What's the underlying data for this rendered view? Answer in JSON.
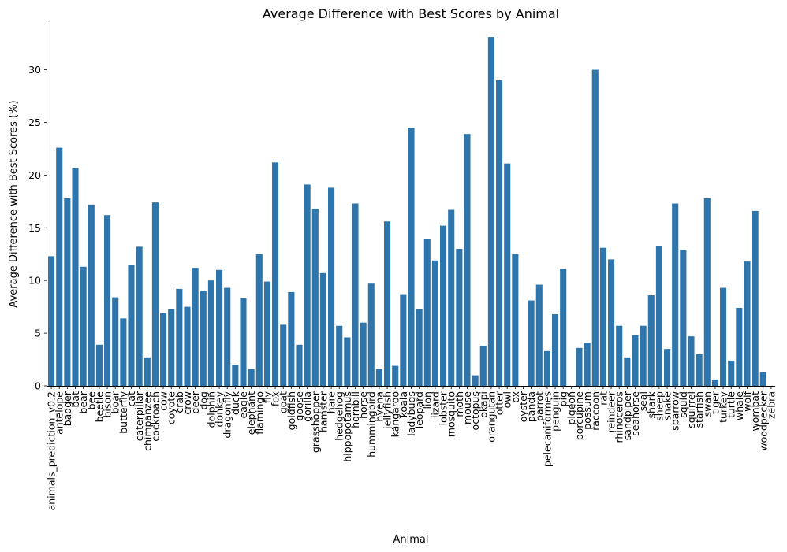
{
  "chart_data": {
    "type": "bar",
    "title": "Average Difference with Best Scores by Animal",
    "xlabel": "Animal",
    "ylabel": "Average Difference with Best Scores (%)",
    "ylim": [
      0,
      34.6
    ],
    "yticks": [
      0,
      5,
      10,
      15,
      20,
      25,
      30
    ],
    "grid": false,
    "bar_color": "#2e75ac",
    "categories": [
      "animals_prediction_v0.2",
      "antelope",
      "badger",
      "bat",
      "bear",
      "bee",
      "beetle",
      "bison",
      "boar",
      "butterfly",
      "cat",
      "caterpillar",
      "chimpanzee",
      "cockroach",
      "cow",
      "coyote",
      "crab",
      "crow",
      "deer",
      "dog",
      "dolphin",
      "donkey",
      "dragonfly",
      "duck",
      "eagle",
      "elephant",
      "flamingo",
      "fly",
      "fox",
      "goat",
      "goldfish",
      "goose",
      "gorilla",
      "grasshopper",
      "hamster",
      "hare",
      "hedgehog",
      "hippopotamus",
      "hornbill",
      "horse",
      "hummingbird",
      "hyena",
      "jellyfish",
      "kangaroo",
      "koala",
      "ladybugs",
      "leopard",
      "lion",
      "lizard",
      "lobster",
      "mosquito",
      "moth",
      "mouse",
      "octopus",
      "okapi",
      "orangutan",
      "otter",
      "owl",
      "ox",
      "oyster",
      "panda",
      "parrot",
      "pelecaniformes",
      "penguin",
      "pig",
      "pigeon",
      "porcupine",
      "possum",
      "raccoon",
      "rat",
      "reindeer",
      "rhinoceros",
      "sandpiper",
      "seahorse",
      "seal",
      "shark",
      "sheep",
      "snake",
      "sparrow",
      "squid",
      "squirrel",
      "starfish",
      "swan",
      "tiger",
      "turkey",
      "turtle",
      "whale",
      "wolf",
      "wombat",
      "woodpecker",
      "zebra"
    ],
    "values": [
      12.3,
      22.6,
      17.8,
      20.7,
      11.3,
      17.2,
      3.9,
      16.2,
      8.4,
      6.4,
      11.5,
      13.2,
      2.7,
      17.4,
      6.9,
      7.3,
      9.2,
      7.5,
      11.2,
      9.0,
      10.0,
      11.0,
      9.3,
      2.0,
      8.3,
      1.6,
      12.5,
      9.9,
      21.2,
      5.8,
      8.9,
      3.9,
      19.1,
      16.8,
      10.7,
      18.8,
      5.7,
      4.6,
      17.3,
      6.0,
      9.7,
      1.6,
      15.6,
      1.9,
      8.7,
      24.5,
      7.3,
      13.9,
      11.9,
      15.2,
      16.7,
      13.0,
      23.9,
      1.0,
      3.8,
      33.1,
      29.0,
      21.1,
      12.5,
      0.0,
      8.1,
      9.6,
      3.3,
      6.8,
      11.1,
      0.0,
      3.6,
      4.1,
      30.0,
      13.1,
      12.0,
      5.7,
      2.7,
      4.8,
      5.7,
      8.6,
      13.3,
      3.5,
      17.3,
      12.9,
      4.7,
      3.0,
      17.8,
      0.6,
      9.3,
      2.4,
      7.4,
      11.8,
      16.6,
      1.3,
      0.0
    ]
  }
}
